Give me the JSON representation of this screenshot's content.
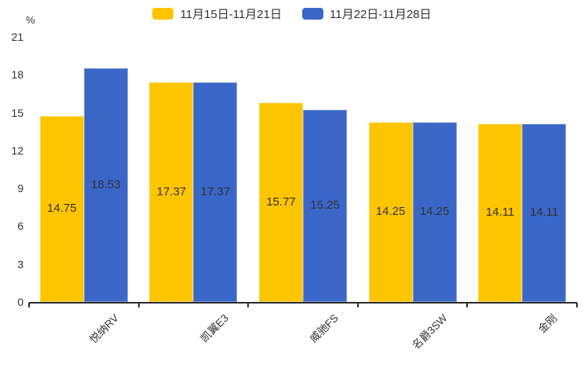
{
  "chart_data": {
    "type": "bar",
    "title": "",
    "ylabel": "%",
    "xlabel": "",
    "categories": [
      "悦纳RV",
      "凯翼E3",
      "威驰FS",
      "名爵3SW",
      "金刚"
    ],
    "series": [
      {
        "name": "11月15日-11月21日",
        "color": "#FDC500",
        "values": [
          14.75,
          17.37,
          15.77,
          14.25,
          14.11
        ]
      },
      {
        "name": "11月22日-11月28日",
        "color": "#3A66C8",
        "values": [
          18.53,
          17.37,
          15.25,
          14.25,
          14.11
        ]
      }
    ],
    "ylim": [
      0,
      21
    ],
    "yticks": [
      0,
      3,
      6,
      9,
      12,
      15,
      18,
      21
    ],
    "grid": false,
    "legend_position": "top",
    "value_labels": "inside-center",
    "x_label_rotation": -45
  },
  "colors": {
    "axis": "#2b2b2b",
    "text": "#333333",
    "background": "#ffffff"
  }
}
